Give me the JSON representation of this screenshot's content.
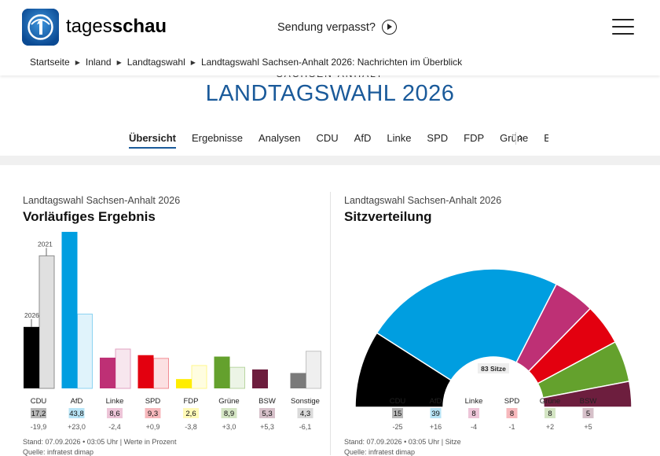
{
  "header": {
    "logo_text_light": "tages",
    "logo_text_bold": "schau",
    "missed_label": "Sendung verpasst?"
  },
  "breadcrumb": [
    "Startseite",
    "Inland",
    "Landtagswahl",
    "Landtagswahl Sachsen-Anhalt 2026: Nachrichten im Überblick"
  ],
  "kicker": "SACHSEN-ANHALT",
  "title": "LANDTAGSWAHL 2026",
  "tabs": [
    "Übersicht",
    "Ergebnisse",
    "Analysen",
    "CDU",
    "AfD",
    "Linke",
    "SPD",
    "FDP",
    "Grüne",
    "B"
  ],
  "results": {
    "kicker": "Landtagswahl Sachsen-Anhalt 2026",
    "title": "Vorläufiges Ergebnis",
    "footer": "Stand: 07.09.2026 • 03:05 Uhr | Werte in Prozent",
    "source": "Quelle: infratest dimap"
  },
  "seats": {
    "kicker": "Landtagswahl Sachsen-Anhalt 2026",
    "title": "Sitzverteilung",
    "total_label": "83 Sitze",
    "footer": "Stand: 07.09.2026 • 03:05 Uhr | Sitze",
    "source": "Quelle: infratest dimap"
  },
  "chart_data": [
    {
      "type": "bar",
      "title": "Vorläufiges Ergebnis",
      "categories": [
        "CDU",
        "AfD",
        "Linke",
        "SPD",
        "FDP",
        "Grüne",
        "BSW",
        "Sonstige"
      ],
      "value_labels": [
        "17,2",
        "43,8",
        "8,6",
        "9,3",
        "2,6",
        "8,9",
        "5,3",
        "4,3"
      ],
      "diff_labels": [
        "-19,9",
        "+23,0",
        "-2,4",
        "+0,9",
        "-3,8",
        "+3,0",
        "+5,3",
        "-6,1"
      ],
      "colors": [
        "#000000",
        "#009ee0",
        "#be3075",
        "#e3000f",
        "#ffed00",
        "#64a12d",
        "#6d1e3e",
        "#7a7a7a"
      ],
      "series": [
        {
          "name": "2026",
          "values": [
            17.2,
            43.8,
            8.6,
            9.3,
            2.6,
            8.9,
            5.3,
            4.3
          ]
        },
        {
          "name": "2021",
          "values": [
            37.1,
            20.8,
            11.0,
            8.4,
            6.4,
            5.9,
            0.0,
            10.4
          ]
        }
      ],
      "ylim": [
        0,
        44
      ]
    },
    {
      "type": "pie",
      "title": "Sitzverteilung",
      "categories": [
        "CDU",
        "AfD",
        "Linke",
        "SPD",
        "Grüne",
        "BSW"
      ],
      "values": [
        15,
        39,
        8,
        8,
        8,
        5
      ],
      "value_labels": [
        "15",
        "39",
        "8",
        "8",
        "8",
        "5"
      ],
      "diff_labels": [
        "-25",
        "+16",
        "-4",
        "-1",
        "+2",
        "+5"
      ],
      "colors": [
        "#000000",
        "#009ee0",
        "#be3075",
        "#e3000f",
        "#64a12d",
        "#6d1e3e"
      ]
    }
  ]
}
